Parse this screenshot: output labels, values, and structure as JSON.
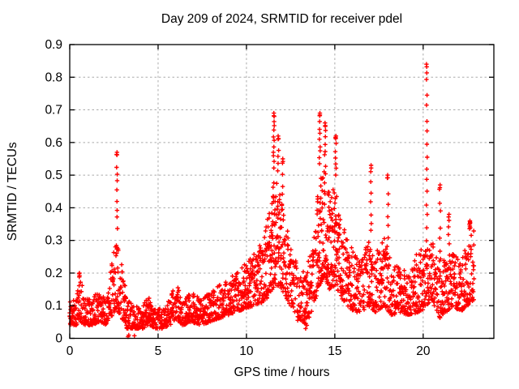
{
  "page": {
    "background": "#ffffff",
    "text_color": "#000000"
  },
  "chart_data": {
    "type": "scatter",
    "title": "Day 209 of 2024, SRMTID for receiver pdel",
    "xlabel": "GPS time / hours",
    "ylabel": "SRMTID / TECUs",
    "xlim": [
      0,
      24
    ],
    "ylim": [
      0,
      0.9
    ],
    "xticks": [
      {
        "value": 0,
        "label": "0"
      },
      {
        "value": 5,
        "label": "5"
      },
      {
        "value": 10,
        "label": "10"
      },
      {
        "value": 15,
        "label": "15"
      },
      {
        "value": 20,
        "label": "20"
      }
    ],
    "yticks": [
      {
        "value": 0.0,
        "label": "0"
      },
      {
        "value": 0.1,
        "label": "0.1"
      },
      {
        "value": 0.2,
        "label": "0.2"
      },
      {
        "value": 0.3,
        "label": "0.3"
      },
      {
        "value": 0.4,
        "label": "0.4"
      },
      {
        "value": 0.5,
        "label": "0.5"
      },
      {
        "value": 0.6,
        "label": "0.6"
      },
      {
        "value": 0.7,
        "label": "0.7"
      },
      {
        "value": 0.8,
        "label": "0.8"
      },
      {
        "value": 0.9,
        "label": "0.9"
      }
    ],
    "grid": {
      "show": true,
      "color": "#ababab",
      "dash": "2.5,3"
    },
    "legend": "none",
    "marker": {
      "shape": "plus",
      "color": "#ff0000",
      "size": 5.4,
      "stroke_width": 1.4
    },
    "x_data_start": 0.0,
    "x_data_end": 22.9,
    "seed": 1337,
    "epoch_step_hours": 0.022,
    "band_profile_hour_lo_hi": [
      [
        0.0,
        0.04,
        0.12
      ],
      [
        0.4,
        0.04,
        0.14
      ],
      [
        0.6,
        0.05,
        0.18
      ],
      [
        0.9,
        0.04,
        0.13
      ],
      [
        1.3,
        0.04,
        0.12
      ],
      [
        1.6,
        0.05,
        0.15
      ],
      [
        2.0,
        0.04,
        0.12
      ],
      [
        2.3,
        0.06,
        0.2
      ],
      [
        2.6,
        0.09,
        0.33
      ],
      [
        2.9,
        0.07,
        0.26
      ],
      [
        3.2,
        0.03,
        0.13
      ],
      [
        3.6,
        0.03,
        0.1
      ],
      [
        4.1,
        0.03,
        0.1
      ],
      [
        4.5,
        0.04,
        0.13
      ],
      [
        4.9,
        0.03,
        0.09
      ],
      [
        5.3,
        0.03,
        0.1
      ],
      [
        5.7,
        0.04,
        0.13
      ],
      [
        6.0,
        0.06,
        0.17
      ],
      [
        6.4,
        0.04,
        0.12
      ],
      [
        6.9,
        0.05,
        0.14
      ],
      [
        7.4,
        0.04,
        0.12
      ],
      [
        7.9,
        0.05,
        0.14
      ],
      [
        8.4,
        0.06,
        0.16
      ],
      [
        8.9,
        0.07,
        0.18
      ],
      [
        9.4,
        0.08,
        0.2
      ],
      [
        9.9,
        0.09,
        0.23
      ],
      [
        10.4,
        0.1,
        0.26
      ],
      [
        10.9,
        0.11,
        0.31
      ],
      [
        11.3,
        0.13,
        0.4
      ],
      [
        11.6,
        0.16,
        0.52
      ],
      [
        11.9,
        0.16,
        0.46
      ],
      [
        12.2,
        0.13,
        0.36
      ],
      [
        12.6,
        0.09,
        0.27
      ],
      [
        13.0,
        0.06,
        0.2
      ],
      [
        13.4,
        0.04,
        0.22
      ],
      [
        13.8,
        0.1,
        0.32
      ],
      [
        14.1,
        0.16,
        0.5
      ],
      [
        14.4,
        0.19,
        0.55
      ],
      [
        14.7,
        0.15,
        0.46
      ],
      [
        15.0,
        0.16,
        0.5
      ],
      [
        15.3,
        0.13,
        0.38
      ],
      [
        15.7,
        0.1,
        0.31
      ],
      [
        16.1,
        0.08,
        0.26
      ],
      [
        16.5,
        0.08,
        0.24
      ],
      [
        16.9,
        0.1,
        0.3
      ],
      [
        17.3,
        0.08,
        0.28
      ],
      [
        17.8,
        0.1,
        0.32
      ],
      [
        18.2,
        0.07,
        0.23
      ],
      [
        18.7,
        0.08,
        0.22
      ],
      [
        19.2,
        0.07,
        0.2
      ],
      [
        19.7,
        0.08,
        0.27
      ],
      [
        20.1,
        0.09,
        0.3
      ],
      [
        20.5,
        0.12,
        0.3
      ],
      [
        20.9,
        0.06,
        0.24
      ],
      [
        21.3,
        0.08,
        0.26
      ],
      [
        21.7,
        0.1,
        0.28
      ],
      [
        22.1,
        0.08,
        0.24
      ],
      [
        22.5,
        0.1,
        0.3
      ],
      [
        22.9,
        0.12,
        0.35
      ]
    ],
    "spike_columns": [
      {
        "hour": 0.55,
        "top": 0.2,
        "count": 2
      },
      {
        "hour": 2.68,
        "top": 0.57,
        "count": 9
      },
      {
        "hour": 11.55,
        "top": 0.69,
        "count": 11
      },
      {
        "hour": 11.8,
        "top": 0.62,
        "count": 5
      },
      {
        "hour": 12.05,
        "top": 0.55,
        "count": 4
      },
      {
        "hour": 14.15,
        "top": 0.69,
        "count": 9
      },
      {
        "hour": 14.45,
        "top": 0.66,
        "count": 6
      },
      {
        "hour": 15.05,
        "top": 0.62,
        "count": 7
      },
      {
        "hour": 17.05,
        "top": 0.53,
        "count": 7
      },
      {
        "hour": 18.0,
        "top": 0.5,
        "count": 6
      },
      {
        "hour": 20.2,
        "top": 0.84,
        "count": 14
      },
      {
        "hour": 20.95,
        "top": 0.47,
        "count": 6
      },
      {
        "hour": 21.45,
        "top": 0.38,
        "count": 4
      },
      {
        "hour": 22.65,
        "top": 0.36,
        "count": 6
      }
    ],
    "outlier_points": [
      [
        3.3,
        0.005
      ],
      [
        3.34,
        0.01
      ],
      [
        3.66,
        0.008
      ],
      [
        12.9,
        0.055
      ],
      [
        13.35,
        0.03
      ],
      [
        13.42,
        0.04
      ]
    ]
  }
}
